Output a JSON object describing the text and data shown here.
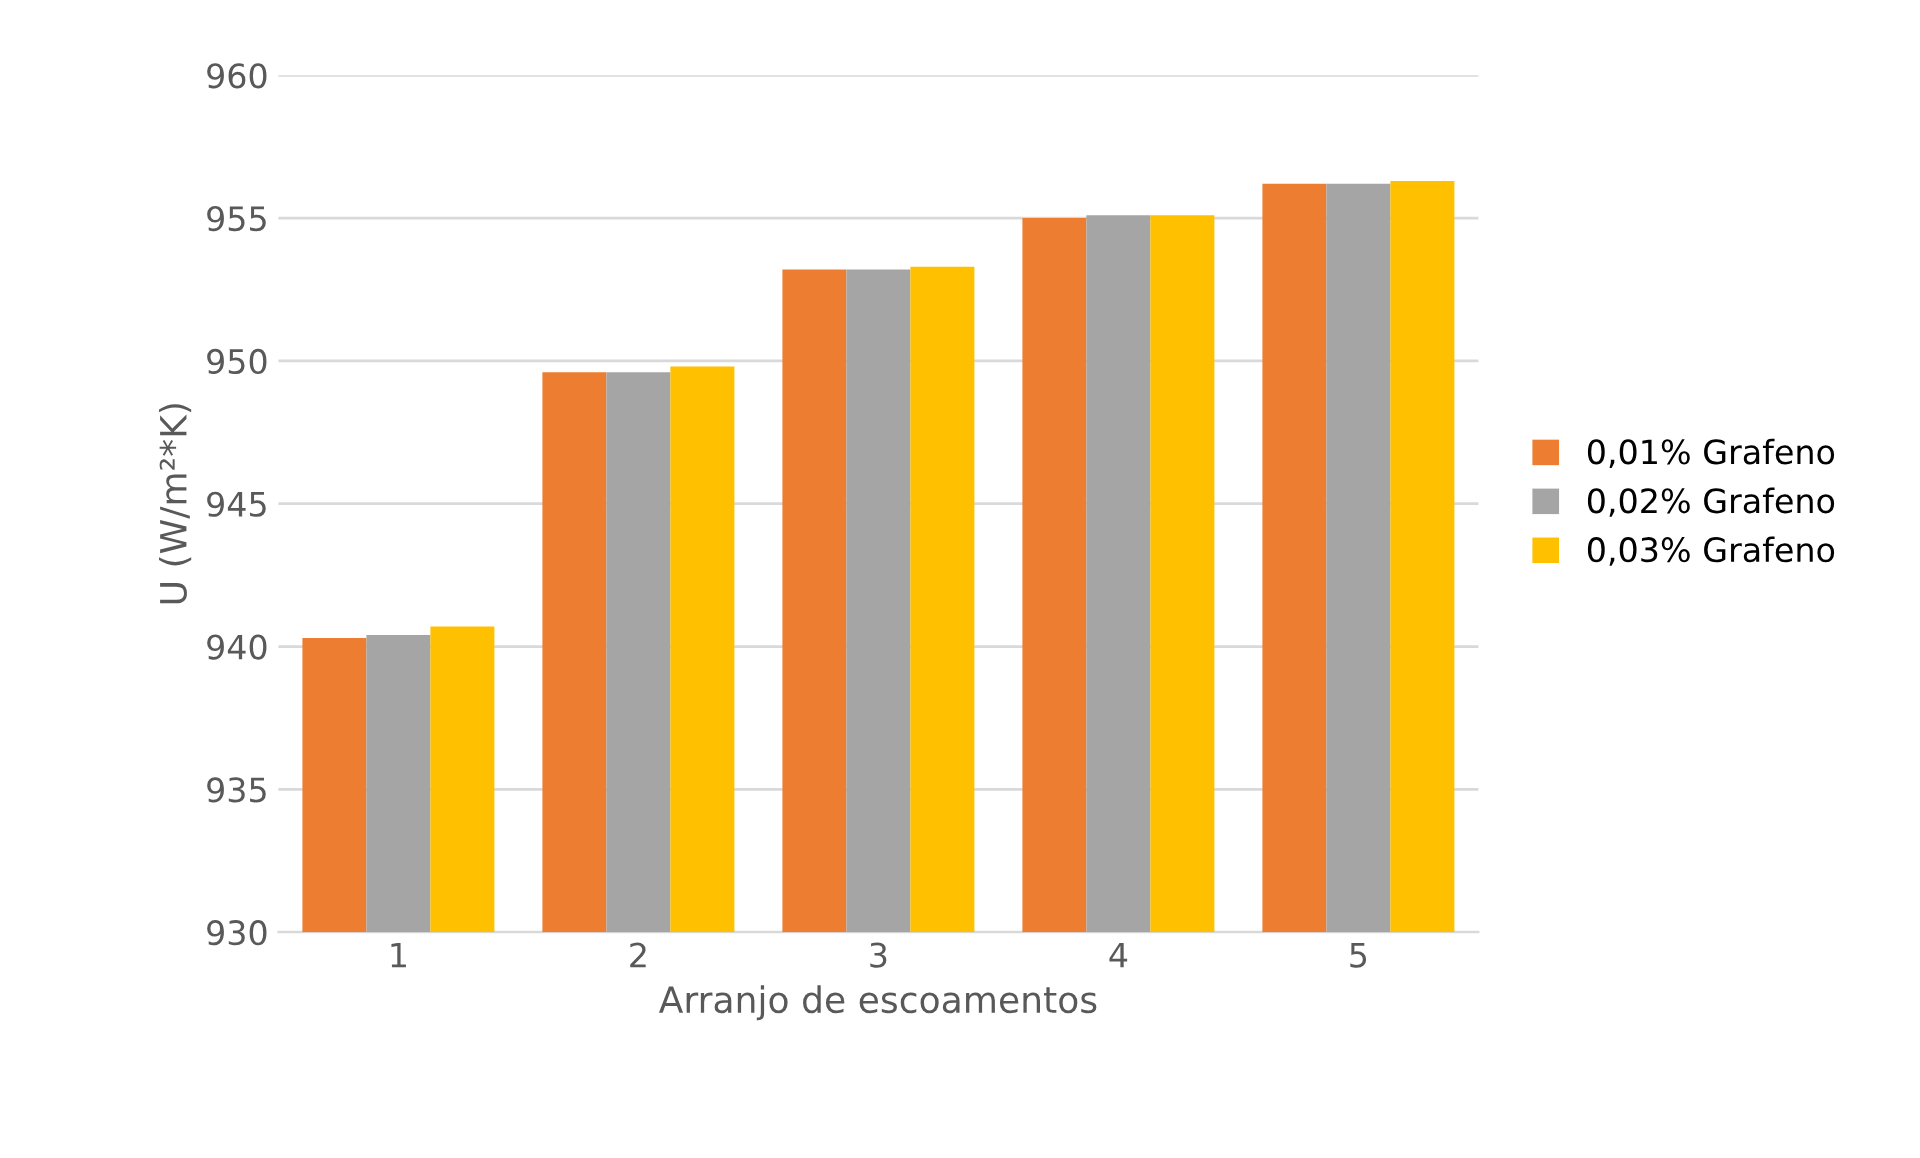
{
  "chart_data": {
    "type": "bar",
    "xlabel": "Arranjo de escoamentos",
    "ylabel": "U (W/m²*K)",
    "categories": [
      "1",
      "2",
      "3",
      "4",
      "5"
    ],
    "series": [
      {
        "name": "0,01% Grafeno",
        "color": "#ed7d31",
        "values": [
          940.3,
          949.6,
          953.2,
          955.0,
          956.2
        ]
      },
      {
        "name": "0,02% Grafeno",
        "color": "#a5a5a5",
        "values": [
          940.4,
          949.6,
          953.2,
          955.1,
          956.2
        ]
      },
      {
        "name": "0,03% Grafeno",
        "color": "#ffc000",
        "values": [
          940.7,
          949.8,
          953.3,
          955.1,
          956.3
        ]
      }
    ],
    "ylim": [
      930,
      960
    ],
    "yticks": [
      930,
      935,
      940,
      945,
      950,
      955,
      960
    ],
    "grid": "y",
    "legend": "right"
  }
}
